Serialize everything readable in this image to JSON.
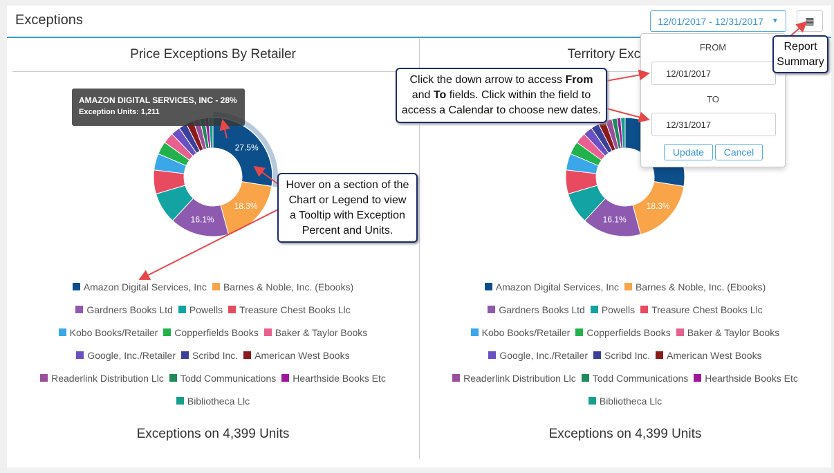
{
  "header": {
    "title": "Exceptions",
    "date_range": "12/01/2017 - 12/31/2017"
  },
  "date_popup": {
    "from_label": "FROM",
    "from_value": "12/01/2017",
    "to_label": "TO",
    "to_value": "12/31/2017",
    "update": "Update",
    "cancel": "Cancel"
  },
  "charts": [
    {
      "type": "donut",
      "title": "Price Exceptions By Retailer",
      "categories": [
        "Amazon Digital Services, Inc",
        "Barnes & Noble, Inc. (Ebooks)",
        "Gardners Books Ltd",
        "Powells",
        "Treasure Chest Books Llc",
        "Kobo Books/Retailer",
        "Copperfields Books",
        "Baker & Taylor Books",
        "Google, Inc./Retailer",
        "Scribd Inc.",
        "American West Books",
        "Readerlink Distribution Llc",
        "Todd Communications",
        "Hearthside Books Etc",
        "Bibliotheca Llc"
      ],
      "values": [
        27.5,
        18.3,
        16.1,
        8.5,
        6.5,
        4.5,
        3.5,
        3.0,
        2.5,
        2.2,
        2.0,
        1.8,
        1.4,
        1.0,
        1.2
      ],
      "value_labels": [
        "27.5%",
        "18.3%",
        "16.1%",
        null,
        null,
        null,
        null,
        null,
        null,
        null,
        null,
        null,
        null,
        null,
        null
      ],
      "colors": [
        "#0d4f8b",
        "#f9a449",
        "#8e5ab0",
        "#14a3a3",
        "#e84a60",
        "#3aa7e8",
        "#22b24c",
        "#e8608f",
        "#6a50c4",
        "#3b409c",
        "#8b1a1a",
        "#9a4f9a",
        "#1f8a5c",
        "#a0169a",
        "#16a08c"
      ],
      "tooltip": {
        "title": "AMAZON DIGITAL SERVICES, INC - 28%",
        "body": "Exception Units: 1,211"
      },
      "footer": "Exceptions on 4,399 Units"
    },
    {
      "type": "donut",
      "title": "Territory Exceptions",
      "categories": [
        "Amazon Digital Services, Inc",
        "Barnes & Noble, Inc. (Ebooks)",
        "Gardners Books Ltd",
        "Powells",
        "Treasure Chest Books Llc",
        "Kobo Books/Retailer",
        "Copperfields Books",
        "Baker & Taylor Books",
        "Google, Inc./Retailer",
        "Scribd Inc.",
        "American West Books",
        "Readerlink Distribution Llc",
        "Todd Communications",
        "Hearthside Books Etc",
        "Bibliotheca Llc"
      ],
      "values": [
        27.5,
        18.3,
        16.1,
        8.5,
        6.5,
        4.5,
        3.5,
        3.0,
        2.5,
        2.2,
        2.0,
        1.8,
        1.4,
        1.0,
        1.2
      ],
      "value_labels": [
        null,
        "18.3%",
        "16.1%",
        null,
        null,
        null,
        null,
        null,
        null,
        null,
        null,
        null,
        null,
        null,
        null
      ],
      "colors": [
        "#0d4f8b",
        "#f9a449",
        "#8e5ab0",
        "#14a3a3",
        "#e84a60",
        "#3aa7e8",
        "#22b24c",
        "#e8608f",
        "#6a50c4",
        "#3b409c",
        "#8b1a1a",
        "#9a4f9a",
        "#1f8a5c",
        "#a0169a",
        "#16a08c"
      ],
      "footer": "Exceptions on 4,399 Units"
    }
  ],
  "callouts": {
    "report_summary": "Report Summary",
    "date_help": [
      "Click the down arrow to access ",
      "From",
      " and ",
      "To",
      " fields.  Click within the field to access a Calendar to choose new dates."
    ],
    "hover_help": "Hover on a section of the Chart or Legend to view a Tooltip with Exception Percent and Units."
  }
}
